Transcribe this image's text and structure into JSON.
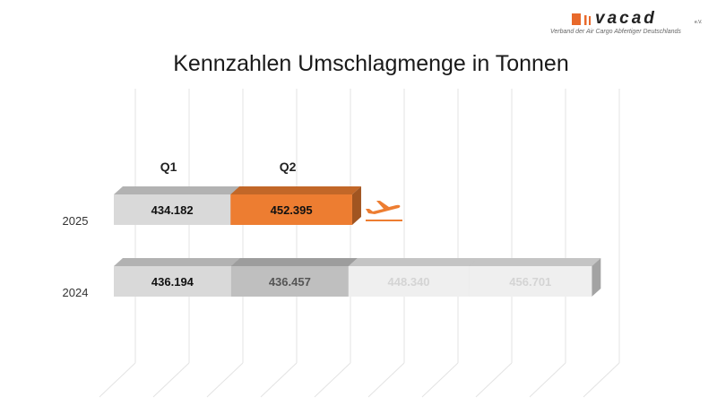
{
  "logo": {
    "brand": "vacad",
    "suffix": "e.V.",
    "subtitle": "Verband der Air Cargo Abfertiger Deutschlands",
    "colors": {
      "mark": "#e8692b",
      "text": "#222222"
    }
  },
  "chart_data": {
    "type": "bar",
    "orientation": "horizontal",
    "stacked": true,
    "title": "Kennzahlen Umschlagmenge in Tonnen",
    "categories": [
      "2025",
      "2024"
    ],
    "series": [
      {
        "name": "Q1",
        "values": [
          434182,
          436194
        ],
        "labels": [
          "434.182",
          "436.194"
        ]
      },
      {
        "name": "Q2",
        "values": [
          452395,
          436457
        ],
        "labels": [
          "452.395",
          "436.457"
        ]
      },
      {
        "name": "",
        "values": [
          null,
          448340
        ],
        "labels": [
          "",
          "448.340"
        ]
      },
      {
        "name": "",
        "values": [
          null,
          456701
        ],
        "labels": [
          "",
          "456.701"
        ]
      }
    ],
    "xlim": [
      0,
      2000000
    ],
    "grid": true,
    "icon": "airplane-takeoff-icon",
    "colors": {
      "q1": "#d9d9d9",
      "q2_2025": "#ed7d31",
      "q2_2024": "#bfbfbf",
      "faded": "#efefef",
      "faded_text": "#d4d4d4",
      "accent": "#ed7d31"
    }
  }
}
